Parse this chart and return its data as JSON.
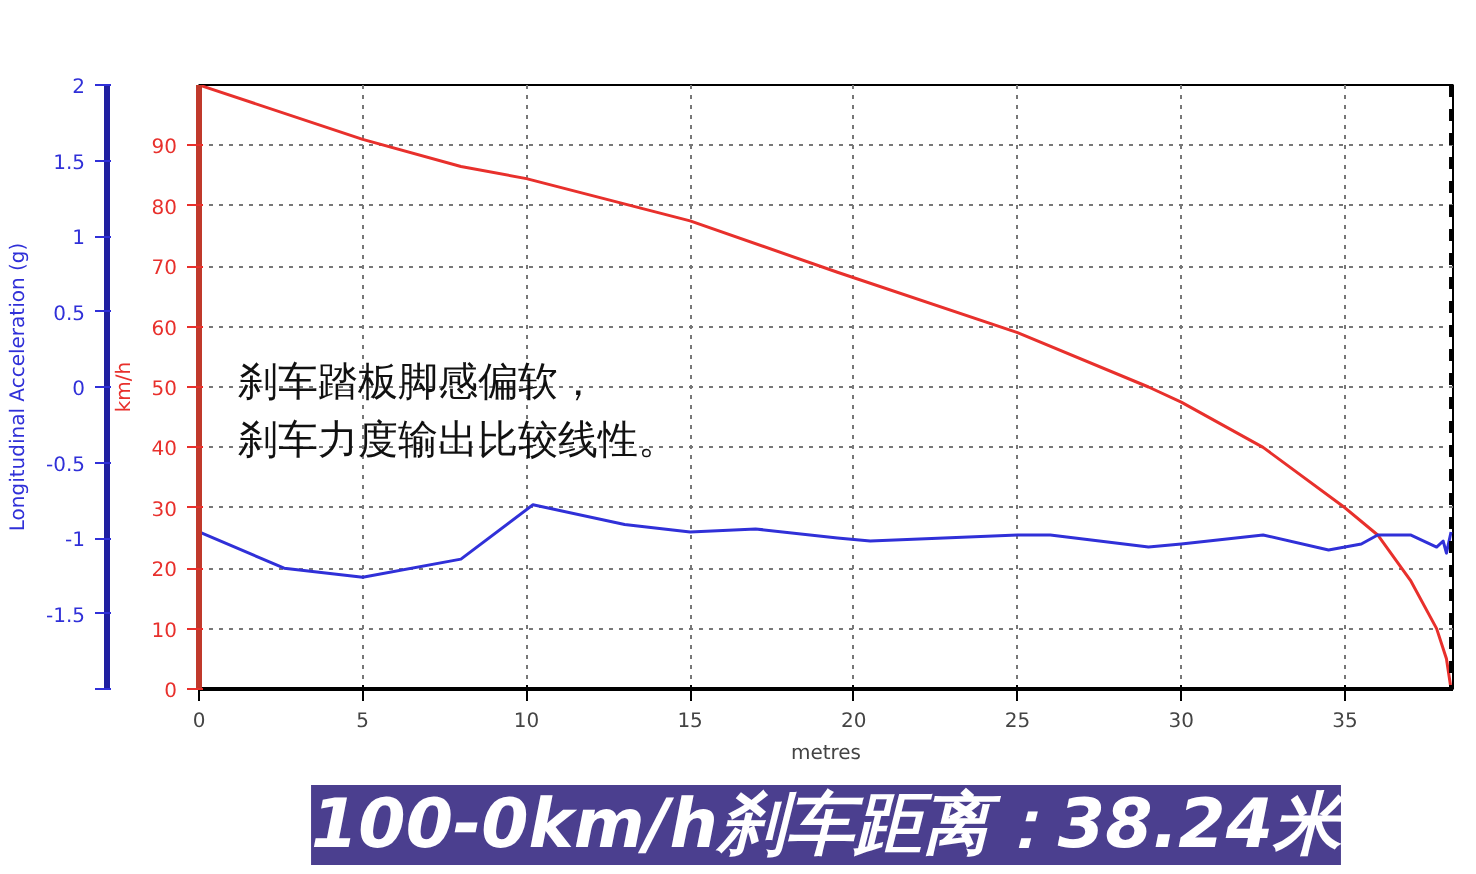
{
  "chart_data": {
    "type": "line",
    "title": "100-0km/h刹车距离：38.24米",
    "xlabel": "metres",
    "ylabel": "km/h",
    "y2label": "Longitudinal Acceleration (g)",
    "annotations": [
      "刹车踏板脚感偏软，",
      "刹车力度输出比较线性。"
    ],
    "xlim": [
      0,
      38.3
    ],
    "xticks": [
      0,
      5,
      10,
      15,
      20,
      25,
      30,
      35
    ],
    "ylim": [
      0,
      100
    ],
    "yticks": [
      0,
      10,
      20,
      30,
      40,
      50,
      60,
      70,
      80,
      90
    ],
    "y2lim": [
      -2,
      2
    ],
    "y2ticks": [
      {
        "value": -2,
        "label": null
      },
      -1.5,
      -1,
      -0.5,
      0,
      0.5,
      1,
      1.5,
      2
    ],
    "grid": true,
    "line_style": "solid",
    "ref_lines": [
      {
        "axis": "x",
        "value": 38.24,
        "label": null,
        "color": "#000000",
        "line_style": "dashed"
      }
    ],
    "series": [
      {
        "color": "#e8302c",
        "x": [
          0,
          5,
          8,
          10,
          15,
          19.5,
          25,
          29,
          30,
          32.5,
          35,
          36,
          37,
          37.8,
          38.1,
          38.24
        ],
        "values": [
          100,
          91,
          86.5,
          84.5,
          77.5,
          69,
          59,
          50,
          47.5,
          40,
          30,
          25.5,
          18,
          10,
          5,
          0
        ]
      },
      {
        "color": "#3030d8",
        "axis": "y2",
        "x": [
          0,
          2.6,
          5,
          8,
          10.2,
          13,
          15,
          17,
          19.5,
          20.5,
          25,
          26,
          29,
          30,
          32.5,
          34.5,
          35.5,
          36,
          37,
          37.8,
          38.0,
          38.1,
          38.24
        ],
        "values": [
          -0.96,
          -1.2,
          -1.26,
          -1.14,
          -0.78,
          -0.91,
          -0.96,
          -0.94,
          -1.0,
          -1.02,
          -0.98,
          -0.98,
          -1.06,
          -1.04,
          -0.98,
          -1.08,
          -1.04,
          -0.98,
          -0.98,
          -1.06,
          -1.02,
          -1.1,
          -0.96
        ]
      }
    ]
  }
}
